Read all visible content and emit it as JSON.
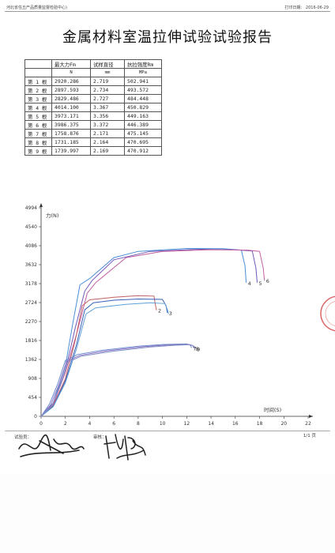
{
  "header": {
    "org": "河北省任丘产品质量监督检验中心)",
    "print_date": "打印日期：  2016-06-29"
  },
  "report": {
    "title": "金属材料室温拉伸试验试验报告"
  },
  "table": {
    "headers": [
      "",
      "最大力Fm",
      "试样直径",
      "抗拉强度Rm"
    ],
    "units": [
      "",
      "N",
      "mm",
      "MPa"
    ],
    "rows": [
      [
        "第 1 根",
        "2920.286",
        "2.719",
        "502.941"
      ],
      [
        "第 2 根",
        "2897.593",
        "2.734",
        "493.572"
      ],
      [
        "第 3 根",
        "2829.486",
        "2.727",
        "484.448"
      ],
      [
        "第 4 根",
        "4014.100",
        "3.367",
        "450.829"
      ],
      [
        "第 5 根",
        "3973.171",
        "3.356",
        "449.163"
      ],
      [
        "第 6 根",
        "3986.375",
        "3.372",
        "446.389"
      ],
      [
        "第 7 根",
        "1758.876",
        "2.171",
        "475.145"
      ],
      [
        "第 8 根",
        "1731.185",
        "2.164",
        "470.695"
      ],
      [
        "第 9 根",
        "1739.997",
        "2.169",
        "470.912"
      ]
    ]
  },
  "chart_data": {
    "type": "line",
    "ylabel": "力(N)",
    "xlabel": "时间(S)",
    "y_ticks": [
      "4994",
      "4540",
      "4086",
      "3632",
      "3178",
      "2724",
      "2270",
      "1816",
      "1362",
      "908",
      "454",
      "0"
    ],
    "y_tick_values": [
      4994,
      4540,
      4086,
      3632,
      3178,
      2724,
      2270,
      1816,
      1362,
      908,
      454,
      0
    ],
    "x_ticks": [
      "0",
      "2",
      "4",
      "6",
      "8",
      "10",
      "12",
      "14",
      "16",
      "18",
      "20",
      "22"
    ],
    "x_tick_values": [
      0,
      2,
      4,
      6,
      8,
      10,
      12,
      14,
      16,
      18,
      20,
      22
    ],
    "xlim": [
      0,
      22
    ],
    "ylim": [
      0,
      4994
    ],
    "grid": false,
    "series": [
      {
        "curve_label": "4",
        "color": "#4a8fd6",
        "points": [
          [
            0,
            0
          ],
          [
            1,
            320
          ],
          [
            2,
            1200
          ],
          [
            2.6,
            2200
          ],
          [
            3.2,
            3150
          ],
          [
            4,
            3300
          ],
          [
            6,
            3800
          ],
          [
            8,
            3950
          ],
          [
            12,
            4020
          ],
          [
            15,
            4015
          ],
          [
            16.5,
            3980
          ],
          [
            16.8,
            3600
          ],
          [
            16.9,
            3200
          ]
        ]
      },
      {
        "curve_label": "5",
        "color": "#7058b8",
        "points": [
          [
            0,
            0
          ],
          [
            1,
            300
          ],
          [
            2,
            1100
          ],
          [
            2.8,
            2100
          ],
          [
            3.6,
            3000
          ],
          [
            4.2,
            3250
          ],
          [
            6,
            3750
          ],
          [
            9,
            3950
          ],
          [
            13,
            4000
          ],
          [
            16,
            3990
          ],
          [
            17.4,
            3960
          ],
          [
            17.7,
            3550
          ],
          [
            17.8,
            3200
          ]
        ]
      },
      {
        "curve_label": "6",
        "color": "#c060a0",
        "points": [
          [
            0,
            0
          ],
          [
            1,
            280
          ],
          [
            2,
            1050
          ],
          [
            3,
            2050
          ],
          [
            3.8,
            2950
          ],
          [
            4.5,
            3200
          ],
          [
            7,
            3800
          ],
          [
            10,
            3950
          ],
          [
            14,
            3990
          ],
          [
            17,
            3980
          ],
          [
            18,
            3950
          ],
          [
            18.3,
            3550
          ],
          [
            18.4,
            3250
          ]
        ]
      },
      {
        "curve_label": "2",
        "color": "#c06060",
        "points": [
          [
            0,
            0
          ],
          [
            1,
            260
          ],
          [
            2,
            900
          ],
          [
            2.8,
            1800
          ],
          [
            3.4,
            2650
          ],
          [
            4,
            2790
          ],
          [
            6,
            2850
          ],
          [
            8,
            2890
          ],
          [
            9.3,
            2880
          ],
          [
            9.4,
            2700
          ],
          [
            9.5,
            2540
          ]
        ]
      },
      {
        "curve_label": "3",
        "color": "#3a5fb8",
        "points": [
          [
            0,
            0
          ],
          [
            1,
            240
          ],
          [
            2,
            850
          ],
          [
            2.9,
            1700
          ],
          [
            3.6,
            2550
          ],
          [
            4.3,
            2720
          ],
          [
            6,
            2780
          ],
          [
            8,
            2810
          ],
          [
            10,
            2800
          ],
          [
            10.3,
            2650
          ],
          [
            10.4,
            2480
          ]
        ]
      },
      {
        "curve_label": "",
        "color": "#60a0d8",
        "points": [
          [
            0,
            0
          ],
          [
            1,
            230
          ],
          [
            2,
            800
          ],
          [
            2.9,
            1600
          ],
          [
            3.7,
            2450
          ],
          [
            4.5,
            2600
          ],
          [
            7,
            2680
          ],
          [
            9,
            2720
          ],
          [
            10.2,
            2700
          ],
          [
            10.4,
            2560
          ],
          [
            10.5,
            2450
          ]
        ]
      },
      {
        "curve_label": "7",
        "color": "#6a8ad0",
        "points": [
          [
            0,
            0
          ],
          [
            0.7,
            300
          ],
          [
            1.4,
            800
          ],
          [
            2,
            1340
          ],
          [
            3,
            1480
          ],
          [
            5,
            1580
          ],
          [
            8,
            1680
          ],
          [
            10,
            1720
          ],
          [
            12,
            1735
          ],
          [
            12.3,
            1700
          ],
          [
            12.4,
            1640
          ]
        ]
      },
      {
        "curve_label": "8",
        "color": "#8a70c0",
        "points": [
          [
            0,
            0
          ],
          [
            0.8,
            280
          ],
          [
            1.5,
            780
          ],
          [
            2.1,
            1320
          ],
          [
            3.2,
            1460
          ],
          [
            5.5,
            1570
          ],
          [
            8.5,
            1670
          ],
          [
            10.5,
            1710
          ],
          [
            12.2,
            1720
          ],
          [
            12.5,
            1690
          ],
          [
            12.6,
            1630
          ]
        ]
      },
      {
        "curve_label": "9",
        "color": "#8090c8",
        "points": [
          [
            0,
            0
          ],
          [
            0.9,
            260
          ],
          [
            1.6,
            760
          ],
          [
            2.2,
            1300
          ],
          [
            3.3,
            1440
          ],
          [
            6,
            1560
          ],
          [
            9,
            1660
          ],
          [
            11,
            1700
          ],
          [
            12.3,
            1715
          ],
          [
            12.6,
            1680
          ],
          [
            12.7,
            1620
          ]
        ]
      }
    ]
  },
  "footer": {
    "tester_label": "试验员：",
    "reviewer_label": "审核：",
    "page": "1/1 页"
  },
  "colors": {
    "rule": "#999999",
    "axis": "#333333",
    "stamp": "#d23c3c"
  }
}
